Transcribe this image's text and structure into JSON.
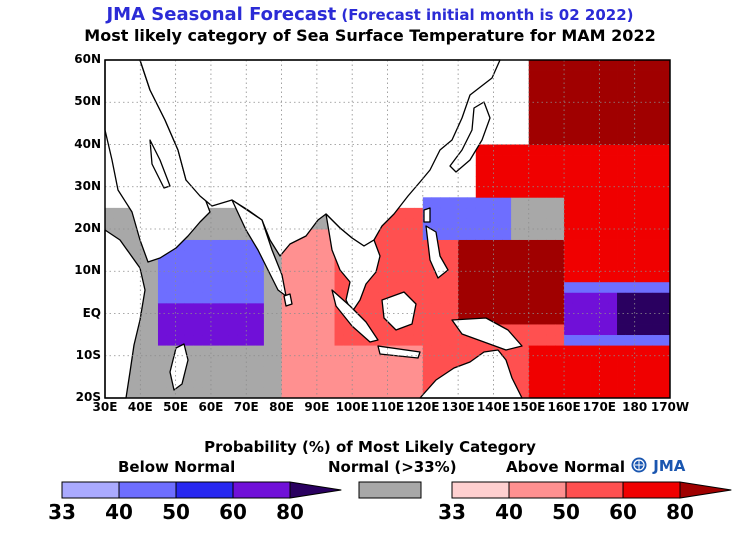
{
  "title": {
    "main": "JMA Seasonal Forecast",
    "sub": "(Forecast initial month is 02 2022)"
  },
  "subtitle": "Most likely category of Sea Surface Temperature for MAM 2022",
  "map": {
    "lat_labels": [
      "60N",
      "50N",
      "40N",
      "30N",
      "20N",
      "10N",
      "EQ",
      "10S",
      "20S"
    ],
    "lon_labels": [
      "30E",
      "40E",
      "50E",
      "60E",
      "70E",
      "80E",
      "90E",
      "100E",
      "110E",
      "120E",
      "130E",
      "140E",
      "150E",
      "160E",
      "170E",
      "180",
      "170W"
    ],
    "lon_range": [
      30,
      190
    ],
    "lat_range": [
      -20,
      60
    ],
    "grid": true
  },
  "legend": {
    "title": "Probability (%) of Most Likely Category",
    "below_label": "Below Normal",
    "normal_label": "Normal (>33%)",
    "above_label": "Above Normal",
    "below_ticks": [
      "33",
      "40",
      "50",
      "60",
      "80"
    ],
    "above_ticks": [
      "33",
      "40",
      "50",
      "60",
      "80"
    ],
    "below_colors": [
      "#aaaaff",
      "#6e6eff",
      "#2828f0",
      "#7010d8",
      "#2a0060"
    ],
    "normal_color": "#a8a8a8",
    "above_colors": [
      "#ffd0d0",
      "#ff9090",
      "#ff5050",
      "#f00000",
      "#a00000"
    ]
  },
  "logo": "JMA"
}
